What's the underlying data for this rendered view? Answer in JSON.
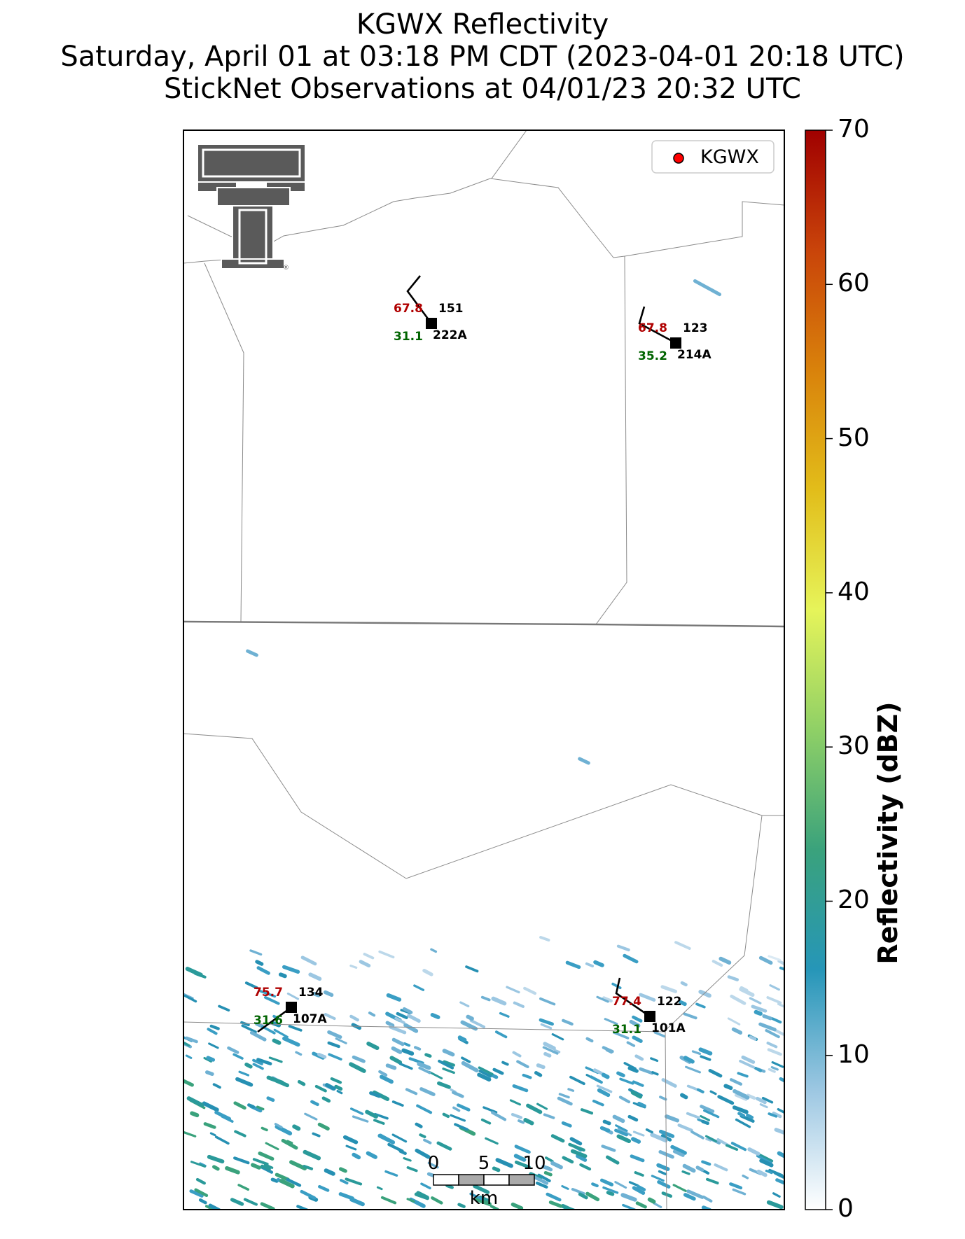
{
  "title": {
    "line1": "KGWX Reflectivity",
    "line2": "Saturday, April 01 at 03:18 PM CDT (2023-04-01 20:18 UTC)",
    "line3": "StickNet Observations at 04/01/23 20:32 UTC"
  },
  "legend": {
    "label": "KGWX",
    "marker_color": "#ff0000"
  },
  "colorbar": {
    "label": "Reflectivity (dBZ)",
    "min": 0,
    "max": 70,
    "ticks": [
      0,
      10,
      20,
      30,
      40,
      50,
      60,
      70
    ],
    "stops": [
      "#ffffff",
      "#9cc7e2",
      "#2696b8",
      "#3aa27c",
      "#8fd066",
      "#e6f45a",
      "#e2bd1a",
      "#d9820b",
      "#c9440a",
      "#a00000"
    ]
  },
  "scale_bar": {
    "ticks": [
      "0",
      "5",
      "10"
    ],
    "unit": "km"
  },
  "stations": [
    {
      "id": "222A",
      "temp": "67.8",
      "dew": "31.1",
      "extra": "151"
    },
    {
      "id": "214A",
      "temp": "67.8",
      "dew": "35.2",
      "extra": "123"
    },
    {
      "id": "107A",
      "temp": "75.7",
      "dew": "31.6",
      "extra": "134"
    },
    {
      "id": "101A",
      "temp": "77.4",
      "dew": "31.1",
      "extra": "122"
    }
  ],
  "colors": {
    "temp": "#b00000",
    "dew": "#006400",
    "border": "#888888",
    "logo": "#5a5a5a"
  }
}
